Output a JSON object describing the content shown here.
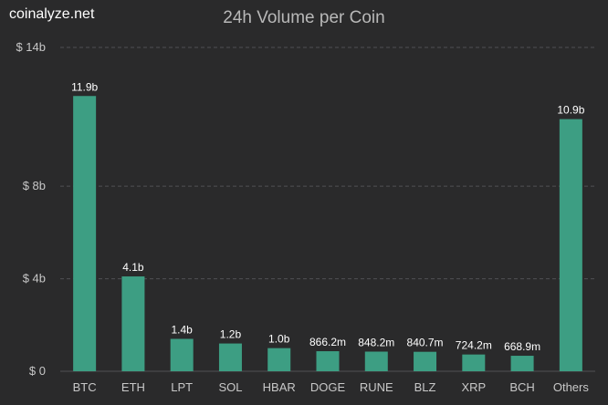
{
  "brand": "coinalyze.net",
  "colors": {
    "background": "#2a2a2b",
    "bar": "#3d9e83",
    "grid": "#505053",
    "text": "#c8c8c8"
  },
  "chart_data": {
    "type": "bar",
    "title": "24h Volume per Coin",
    "xlabel": "",
    "ylabel": "",
    "categories": [
      "BTC",
      "ETH",
      "LPT",
      "SOL",
      "HBAR",
      "DOGE",
      "RUNE",
      "BLZ",
      "XRP",
      "BCH",
      "Others"
    ],
    "values": [
      11.9,
      4.1,
      1.4,
      1.2,
      1.0,
      0.8662,
      0.8482,
      0.8407,
      0.7242,
      0.6689,
      10.9
    ],
    "data_labels": [
      "11.9b",
      "4.1b",
      "1.4b",
      "1.2b",
      "1.0b",
      "866.2m",
      "848.2m",
      "840.7m",
      "724.2m",
      "668.9m",
      "10.9b"
    ],
    "unit": "billion USD",
    "ylim": [
      0,
      14
    ],
    "yticks": [
      0,
      4,
      8,
      14
    ],
    "ytick_labels": [
      "$ 0",
      "$ 4b",
      "$ 8b",
      "$ 14b"
    ],
    "grid": "horizontal dashed",
    "legend": "none"
  }
}
